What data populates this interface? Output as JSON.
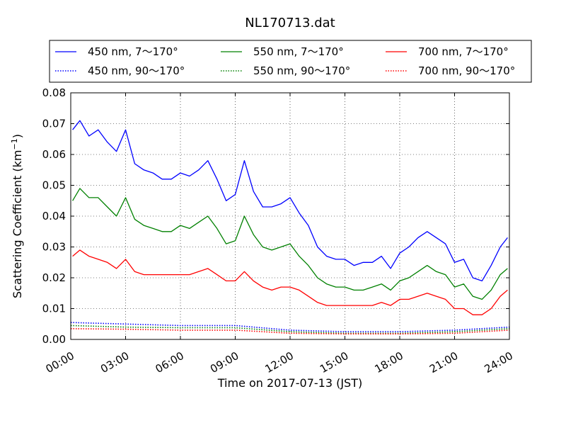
{
  "chart_data": {
    "type": "line",
    "title": "NL170713.dat",
    "xlabel": "Time on 2017-07-13 (JST)",
    "ylabel_main": "Scattering Coefficient (km",
    "ylabel_sup": "−1",
    "ylabel_close": ")",
    "xlim": [
      0,
      24
    ],
    "ylim": [
      0,
      0.08
    ],
    "x_ticks": [
      0,
      3,
      6,
      9,
      12,
      15,
      18,
      21,
      24
    ],
    "x_tick_labels": [
      "00:00",
      "03:00",
      "06:00",
      "09:00",
      "12:00",
      "15:00",
      "18:00",
      "21:00",
      "24:00"
    ],
    "y_ticks": [
      0,
      0.01,
      0.02,
      0.03,
      0.04,
      0.05,
      0.06,
      0.07,
      0.08
    ],
    "y_tick_labels": [
      "0.00",
      "0.01",
      "0.02",
      "0.03",
      "0.04",
      "0.05",
      "0.06",
      "0.07",
      "0.08"
    ],
    "grid": true,
    "legend_position": "top, above plot",
    "x_unit": "hours",
    "series": [
      {
        "name": "450 nm, 7～170°",
        "color": "#0000ff",
        "style": "solid",
        "x": [
          0.1,
          0.5,
          1.0,
          1.5,
          2.0,
          2.5,
          3.0,
          3.5,
          4.0,
          4.5,
          5.0,
          5.5,
          6.0,
          6.5,
          7.0,
          7.5,
          8.0,
          8.5,
          9.0,
          9.5,
          10.0,
          10.5,
          11.0,
          11.5,
          12.0,
          12.5,
          13.0,
          13.5,
          14.0,
          14.5,
          15.0,
          15.5,
          16.0,
          16.5,
          17.0,
          17.5,
          18.0,
          18.5,
          19.0,
          19.5,
          20.0,
          20.5,
          21.0,
          21.5,
          22.0,
          22.5,
          23.0,
          23.5,
          23.9
        ],
        "values": [
          0.068,
          0.071,
          0.066,
          0.068,
          0.064,
          0.061,
          0.068,
          0.057,
          0.055,
          0.054,
          0.052,
          0.052,
          0.054,
          0.053,
          0.055,
          0.058,
          0.052,
          0.045,
          0.047,
          0.058,
          0.048,
          0.043,
          0.043,
          0.044,
          0.046,
          0.041,
          0.037,
          0.03,
          0.027,
          0.026,
          0.026,
          0.024,
          0.025,
          0.025,
          0.027,
          0.023,
          0.028,
          0.03,
          0.033,
          0.035,
          0.033,
          0.031,
          0.025,
          0.026,
          0.02,
          0.019,
          0.024,
          0.03,
          0.033
        ]
      },
      {
        "name": "450 nm, 90～170°",
        "color": "#0000ff",
        "style": "dotted",
        "x": [
          0,
          3,
          6,
          9,
          12,
          15,
          18,
          21,
          24
        ],
        "values": [
          0.0055,
          0.005,
          0.0045,
          0.0045,
          0.003,
          0.0025,
          0.0025,
          0.003,
          0.004
        ]
      },
      {
        "name": "550 nm, 7～170°",
        "color": "#008000",
        "style": "solid",
        "x": [
          0.1,
          0.5,
          1.0,
          1.5,
          2.0,
          2.5,
          3.0,
          3.5,
          4.0,
          4.5,
          5.0,
          5.5,
          6.0,
          6.5,
          7.0,
          7.5,
          8.0,
          8.5,
          9.0,
          9.5,
          10.0,
          10.5,
          11.0,
          11.5,
          12.0,
          12.5,
          13.0,
          13.5,
          14.0,
          14.5,
          15.0,
          15.5,
          16.0,
          16.5,
          17.0,
          17.5,
          18.0,
          18.5,
          19.0,
          19.5,
          20.0,
          20.5,
          21.0,
          21.5,
          22.0,
          22.5,
          23.0,
          23.5,
          23.9
        ],
        "values": [
          0.045,
          0.049,
          0.046,
          0.046,
          0.043,
          0.04,
          0.046,
          0.039,
          0.037,
          0.036,
          0.035,
          0.035,
          0.037,
          0.036,
          0.038,
          0.04,
          0.036,
          0.031,
          0.032,
          0.04,
          0.034,
          0.03,
          0.029,
          0.03,
          0.031,
          0.027,
          0.024,
          0.02,
          0.018,
          0.017,
          0.017,
          0.016,
          0.016,
          0.017,
          0.018,
          0.016,
          0.019,
          0.02,
          0.022,
          0.024,
          0.022,
          0.021,
          0.017,
          0.018,
          0.014,
          0.013,
          0.016,
          0.021,
          0.023
        ]
      },
      {
        "name": "550 nm, 90～170°",
        "color": "#008000",
        "style": "dotted",
        "x": [
          0,
          3,
          6,
          9,
          12,
          15,
          18,
          21,
          24
        ],
        "values": [
          0.0045,
          0.004,
          0.0038,
          0.0038,
          0.0025,
          0.002,
          0.002,
          0.0025,
          0.0035
        ]
      },
      {
        "name": "700 nm, 7～170°",
        "color": "#ff0000",
        "style": "solid",
        "x": [
          0.1,
          0.5,
          1.0,
          1.5,
          2.0,
          2.5,
          3.0,
          3.5,
          4.0,
          4.5,
          5.0,
          5.5,
          6.0,
          6.5,
          7.0,
          7.5,
          8.0,
          8.5,
          9.0,
          9.5,
          10.0,
          10.5,
          11.0,
          11.5,
          12.0,
          12.5,
          13.0,
          13.5,
          14.0,
          14.5,
          15.0,
          15.5,
          16.0,
          16.5,
          17.0,
          17.5,
          18.0,
          18.5,
          19.0,
          19.5,
          20.0,
          20.5,
          21.0,
          21.5,
          22.0,
          22.5,
          23.0,
          23.5,
          23.9
        ],
        "values": [
          0.027,
          0.029,
          0.027,
          0.026,
          0.025,
          0.023,
          0.026,
          0.022,
          0.021,
          0.021,
          0.021,
          0.021,
          0.021,
          0.021,
          0.022,
          0.023,
          0.021,
          0.019,
          0.019,
          0.022,
          0.019,
          0.017,
          0.016,
          0.017,
          0.017,
          0.016,
          0.014,
          0.012,
          0.011,
          0.011,
          0.011,
          0.011,
          0.011,
          0.011,
          0.012,
          0.011,
          0.013,
          0.013,
          0.014,
          0.015,
          0.014,
          0.013,
          0.01,
          0.01,
          0.008,
          0.008,
          0.01,
          0.014,
          0.016
        ]
      },
      {
        "name": "700 nm, 90～170°",
        "color": "#ff0000",
        "style": "dotted",
        "x": [
          0,
          3,
          6,
          9,
          12,
          15,
          18,
          21,
          24
        ],
        "values": [
          0.0035,
          0.0033,
          0.003,
          0.003,
          0.002,
          0.0018,
          0.0018,
          0.002,
          0.003
        ]
      }
    ]
  }
}
